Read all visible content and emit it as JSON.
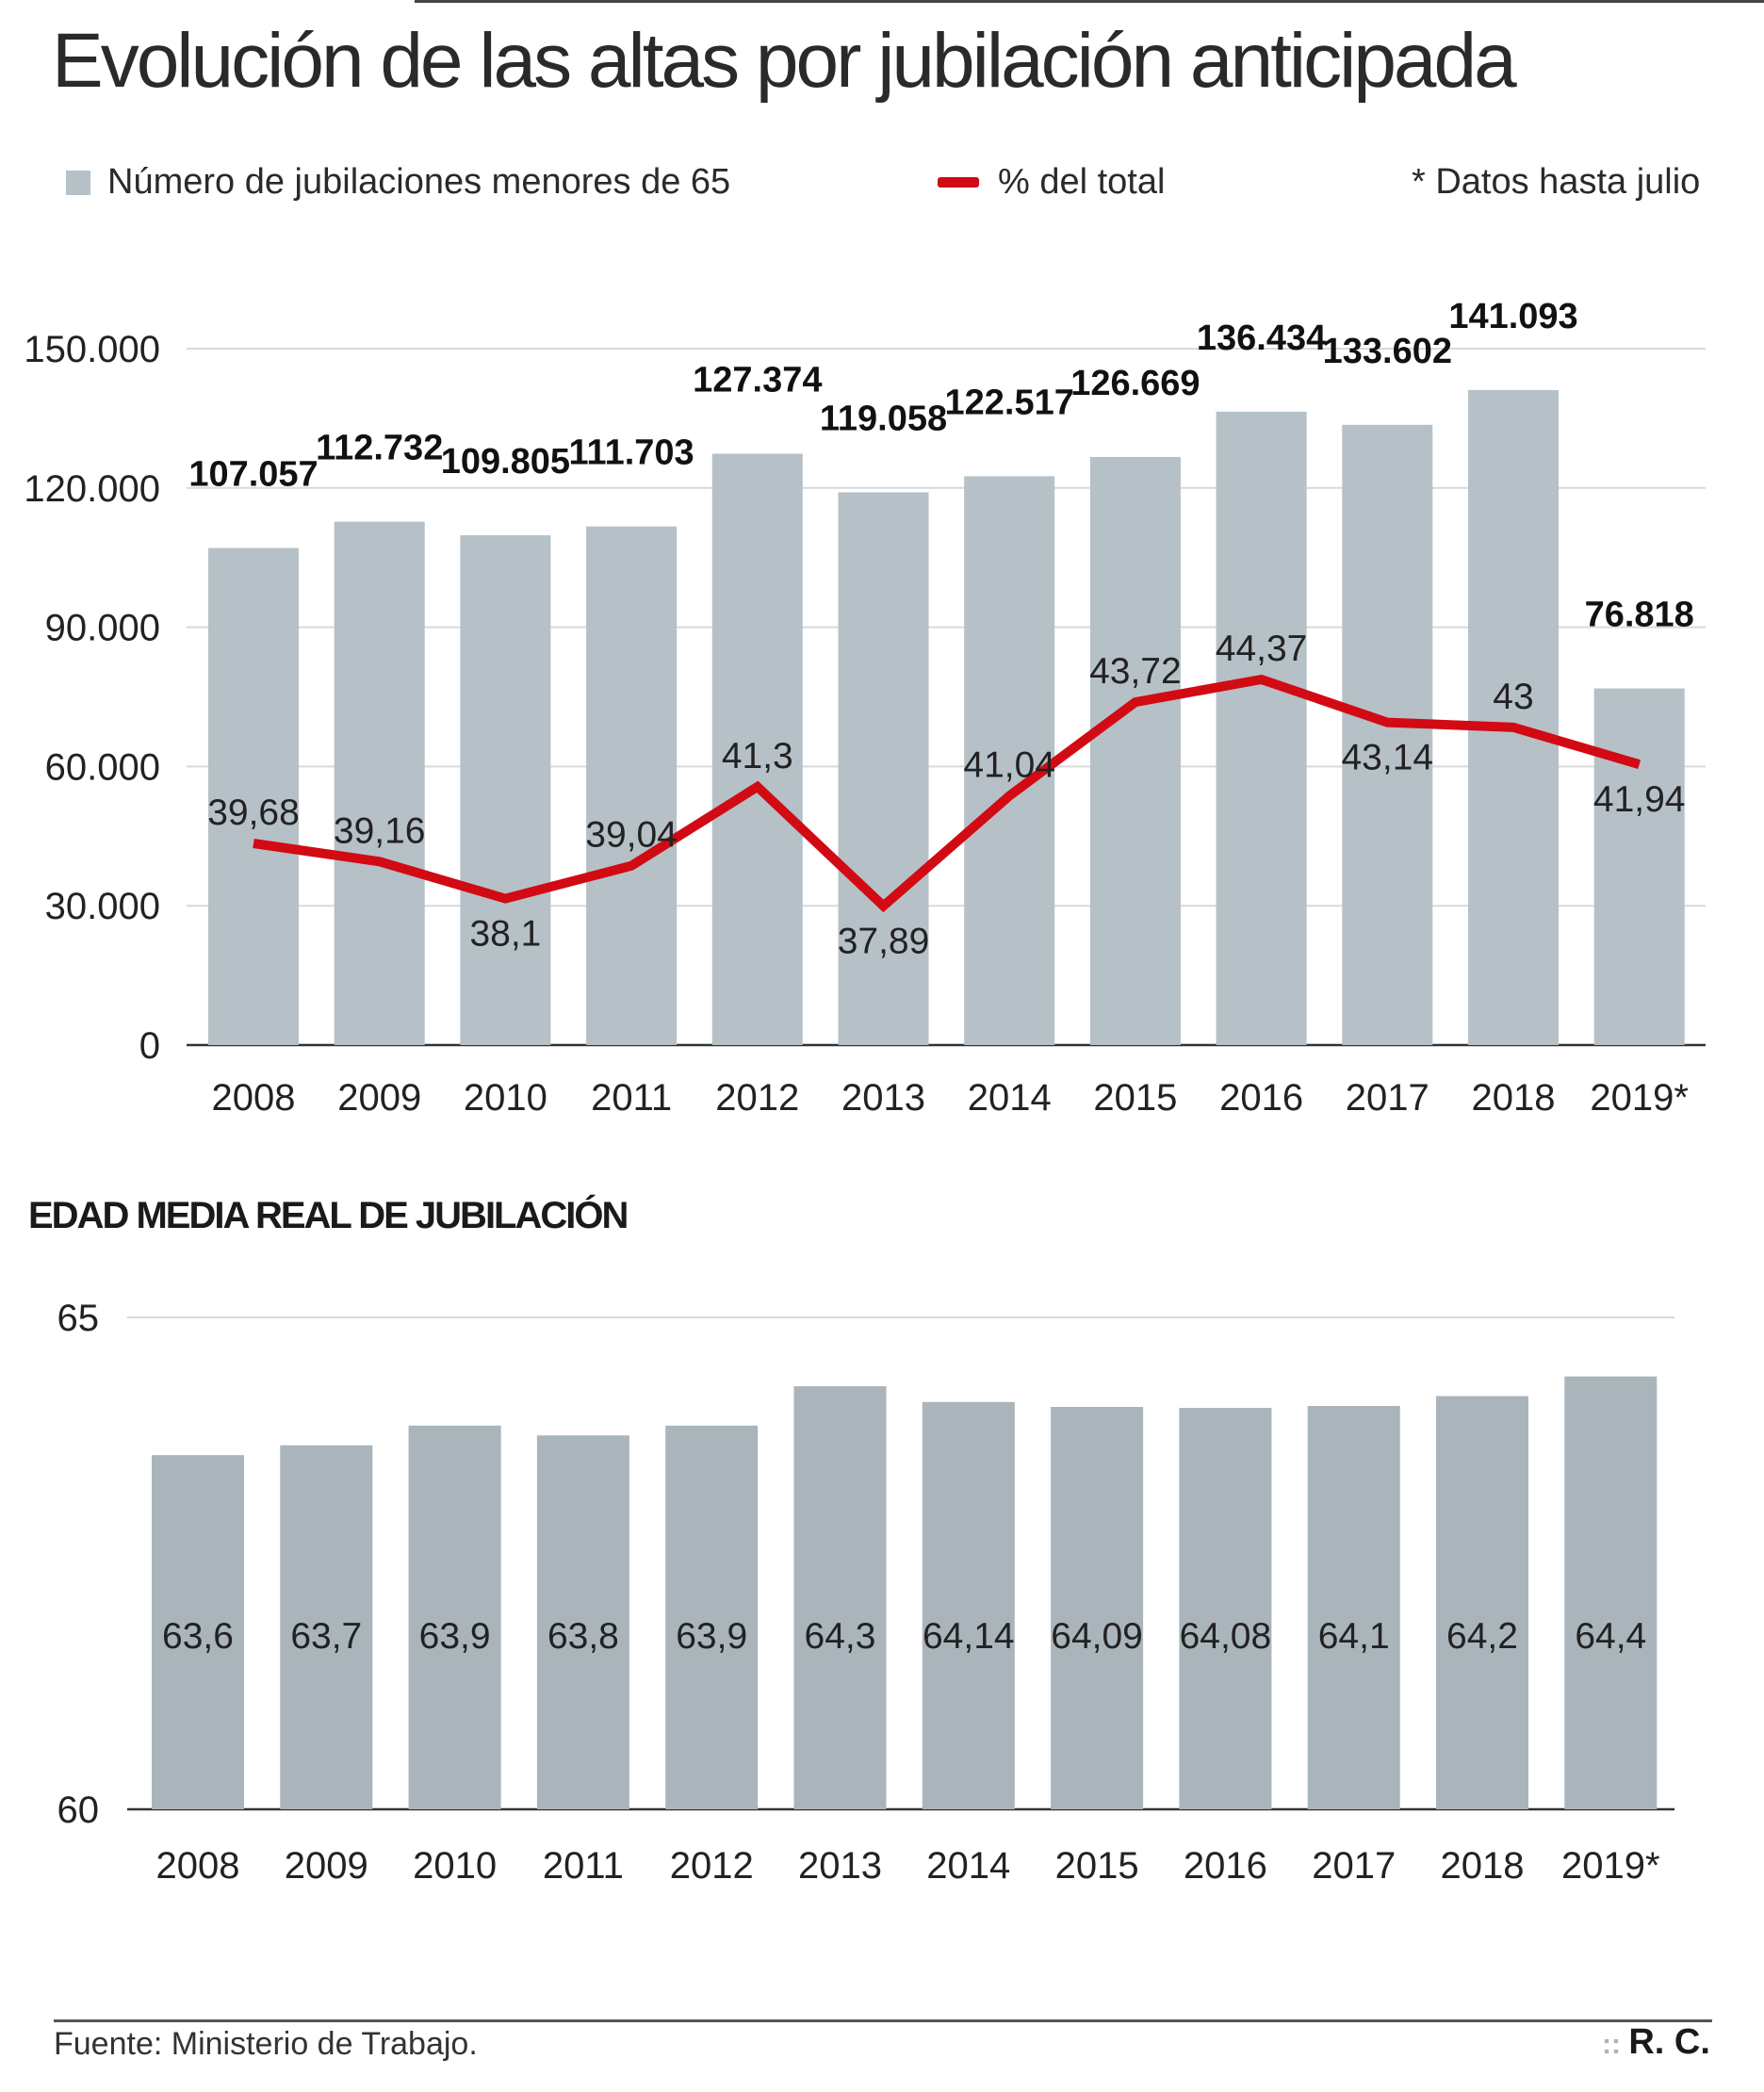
{
  "title": "Evolución de las altas por jubilación anticipada",
  "legend": {
    "bars_label": "Número de jubilaciones menores de 65",
    "line_label": "% del total",
    "note": "* Datos hasta julio"
  },
  "colors": {
    "bar": "#b6c0c7",
    "bar2": "#aab4bb",
    "line": "#d20a13",
    "grid": "#d9d9d9",
    "axis": "#333333"
  },
  "chart_data": [
    {
      "type": "bar+line",
      "categories": [
        "2008",
        "2009",
        "2010",
        "2011",
        "2012",
        "2013",
        "2014",
        "2015",
        "2016",
        "2017",
        "2018",
        "2019*"
      ],
      "ylim": [
        0,
        150000
      ],
      "yticks": [
        0,
        30000,
        60000,
        90000,
        120000,
        150000
      ],
      "ytick_labels": [
        "0",
        "30.000",
        "60.000",
        "90.000",
        "120.000",
        "150.000"
      ],
      "grid": true,
      "legend_position": "top",
      "series": [
        {
          "name": "Número de jubilaciones menores de 65",
          "type": "bar",
          "values": [
            107057,
            112732,
            109805,
            111703,
            127374,
            119058,
            122517,
            126669,
            136434,
            133602,
            141093,
            76818
          ],
          "labels": [
            "107.057",
            "112.732",
            "109.805",
            "111.703",
            "127.374",
            "119.058",
            "122.517",
            "126.669",
            "136.434",
            "133.602",
            "141.093",
            "76.818"
          ]
        },
        {
          "name": "% del total",
          "type": "line",
          "values": [
            39.68,
            39.16,
            38.1,
            39.04,
            41.3,
            37.89,
            41.04,
            43.72,
            44.37,
            43.14,
            43,
            41.94
          ],
          "labels": [
            "39,68",
            "39,16",
            "38,1",
            "39,04",
            "41,3",
            "37,89",
            "41,04",
            "43,72",
            "44,37",
            "43,14",
            "43",
            "41,94"
          ],
          "label_positions": [
            "above",
            "above",
            "below",
            "above",
            "above",
            "below",
            "above",
            "above",
            "above",
            "below",
            "above",
            "below"
          ]
        }
      ]
    },
    {
      "type": "bar",
      "title": "EDAD MEDIA REAL DE JUBILACIÓN",
      "categories": [
        "2008",
        "2009",
        "2010",
        "2011",
        "2012",
        "2013",
        "2014",
        "2015",
        "2016",
        "2017",
        "2018",
        "2019*"
      ],
      "ylim": [
        60,
        65
      ],
      "yticks": [
        60,
        65
      ],
      "ytick_labels": [
        "60",
        "65"
      ],
      "grid": true,
      "values": [
        63.6,
        63.7,
        63.9,
        63.8,
        63.9,
        64.3,
        64.14,
        64.09,
        64.08,
        64.1,
        64.2,
        64.4
      ],
      "labels": [
        "63,6",
        "63,7",
        "63,9",
        "63,8",
        "63,9",
        "64,3",
        "64,14",
        "64,09",
        "64,08",
        "64,1",
        "64,2",
        "64,4"
      ]
    }
  ],
  "footer": {
    "source": "Fuente: Ministerio de Trabajo.",
    "credit": "R. C."
  }
}
